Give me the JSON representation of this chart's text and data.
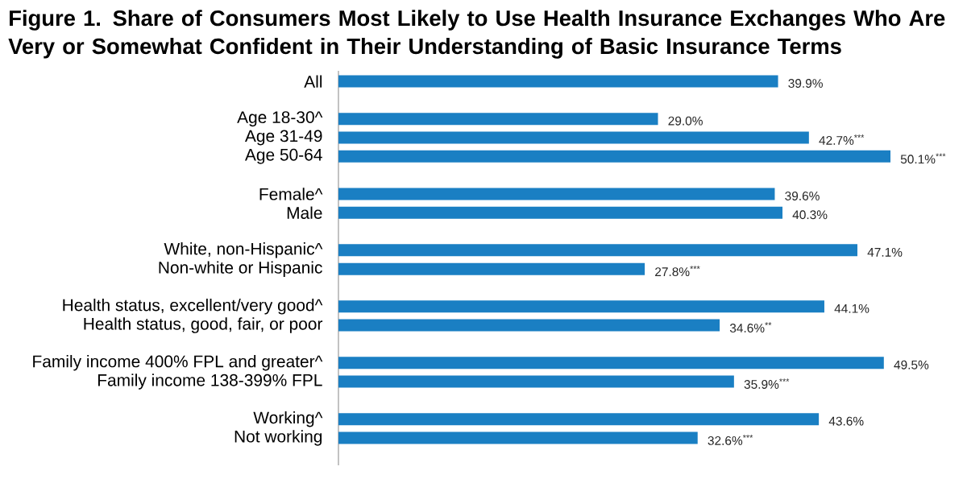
{
  "chart_data": {
    "type": "bar",
    "orientation": "horizontal",
    "title": "Figure 1. Share of Consumers Most Likely to Use Health Insurance Exchanges Who Are Very or Somewhat Confident in Their Understanding of Basic Insurance Terms",
    "categories": [
      "All",
      null,
      "Age 18-30^",
      "Age 31-49",
      "Age 50-64",
      null,
      "Female^",
      "Male",
      null,
      "White, non-Hispanic^",
      "Non-white or Hispanic",
      null,
      "Health status, excellent/very good^",
      "Health status, good, fair, or poor",
      null,
      "Family income 400% FPL and greater^",
      "Family income 138-399% FPL",
      null,
      "Working^",
      "Not working"
    ],
    "values": [
      39.9,
      null,
      29.0,
      42.7,
      50.1,
      null,
      39.6,
      40.3,
      null,
      47.1,
      27.8,
      null,
      44.1,
      34.6,
      null,
      49.5,
      35.9,
      null,
      43.6,
      32.6
    ],
    "value_labels": [
      "39.9%",
      null,
      "29.0%",
      "42.7%$^{***}$",
      "50.1%$^{***}$",
      null,
      "39.6%",
      "40.3%",
      null,
      "47.1%",
      "27.8%$^{***}$",
      null,
      "44.1%",
      "34.6%$^{**}$",
      null,
      "49.5%",
      "35.9%$^{***}$",
      null,
      "43.6%",
      "32.6%$^{***}$"
    ],
    "color": "#1a7fc3"
  }
}
